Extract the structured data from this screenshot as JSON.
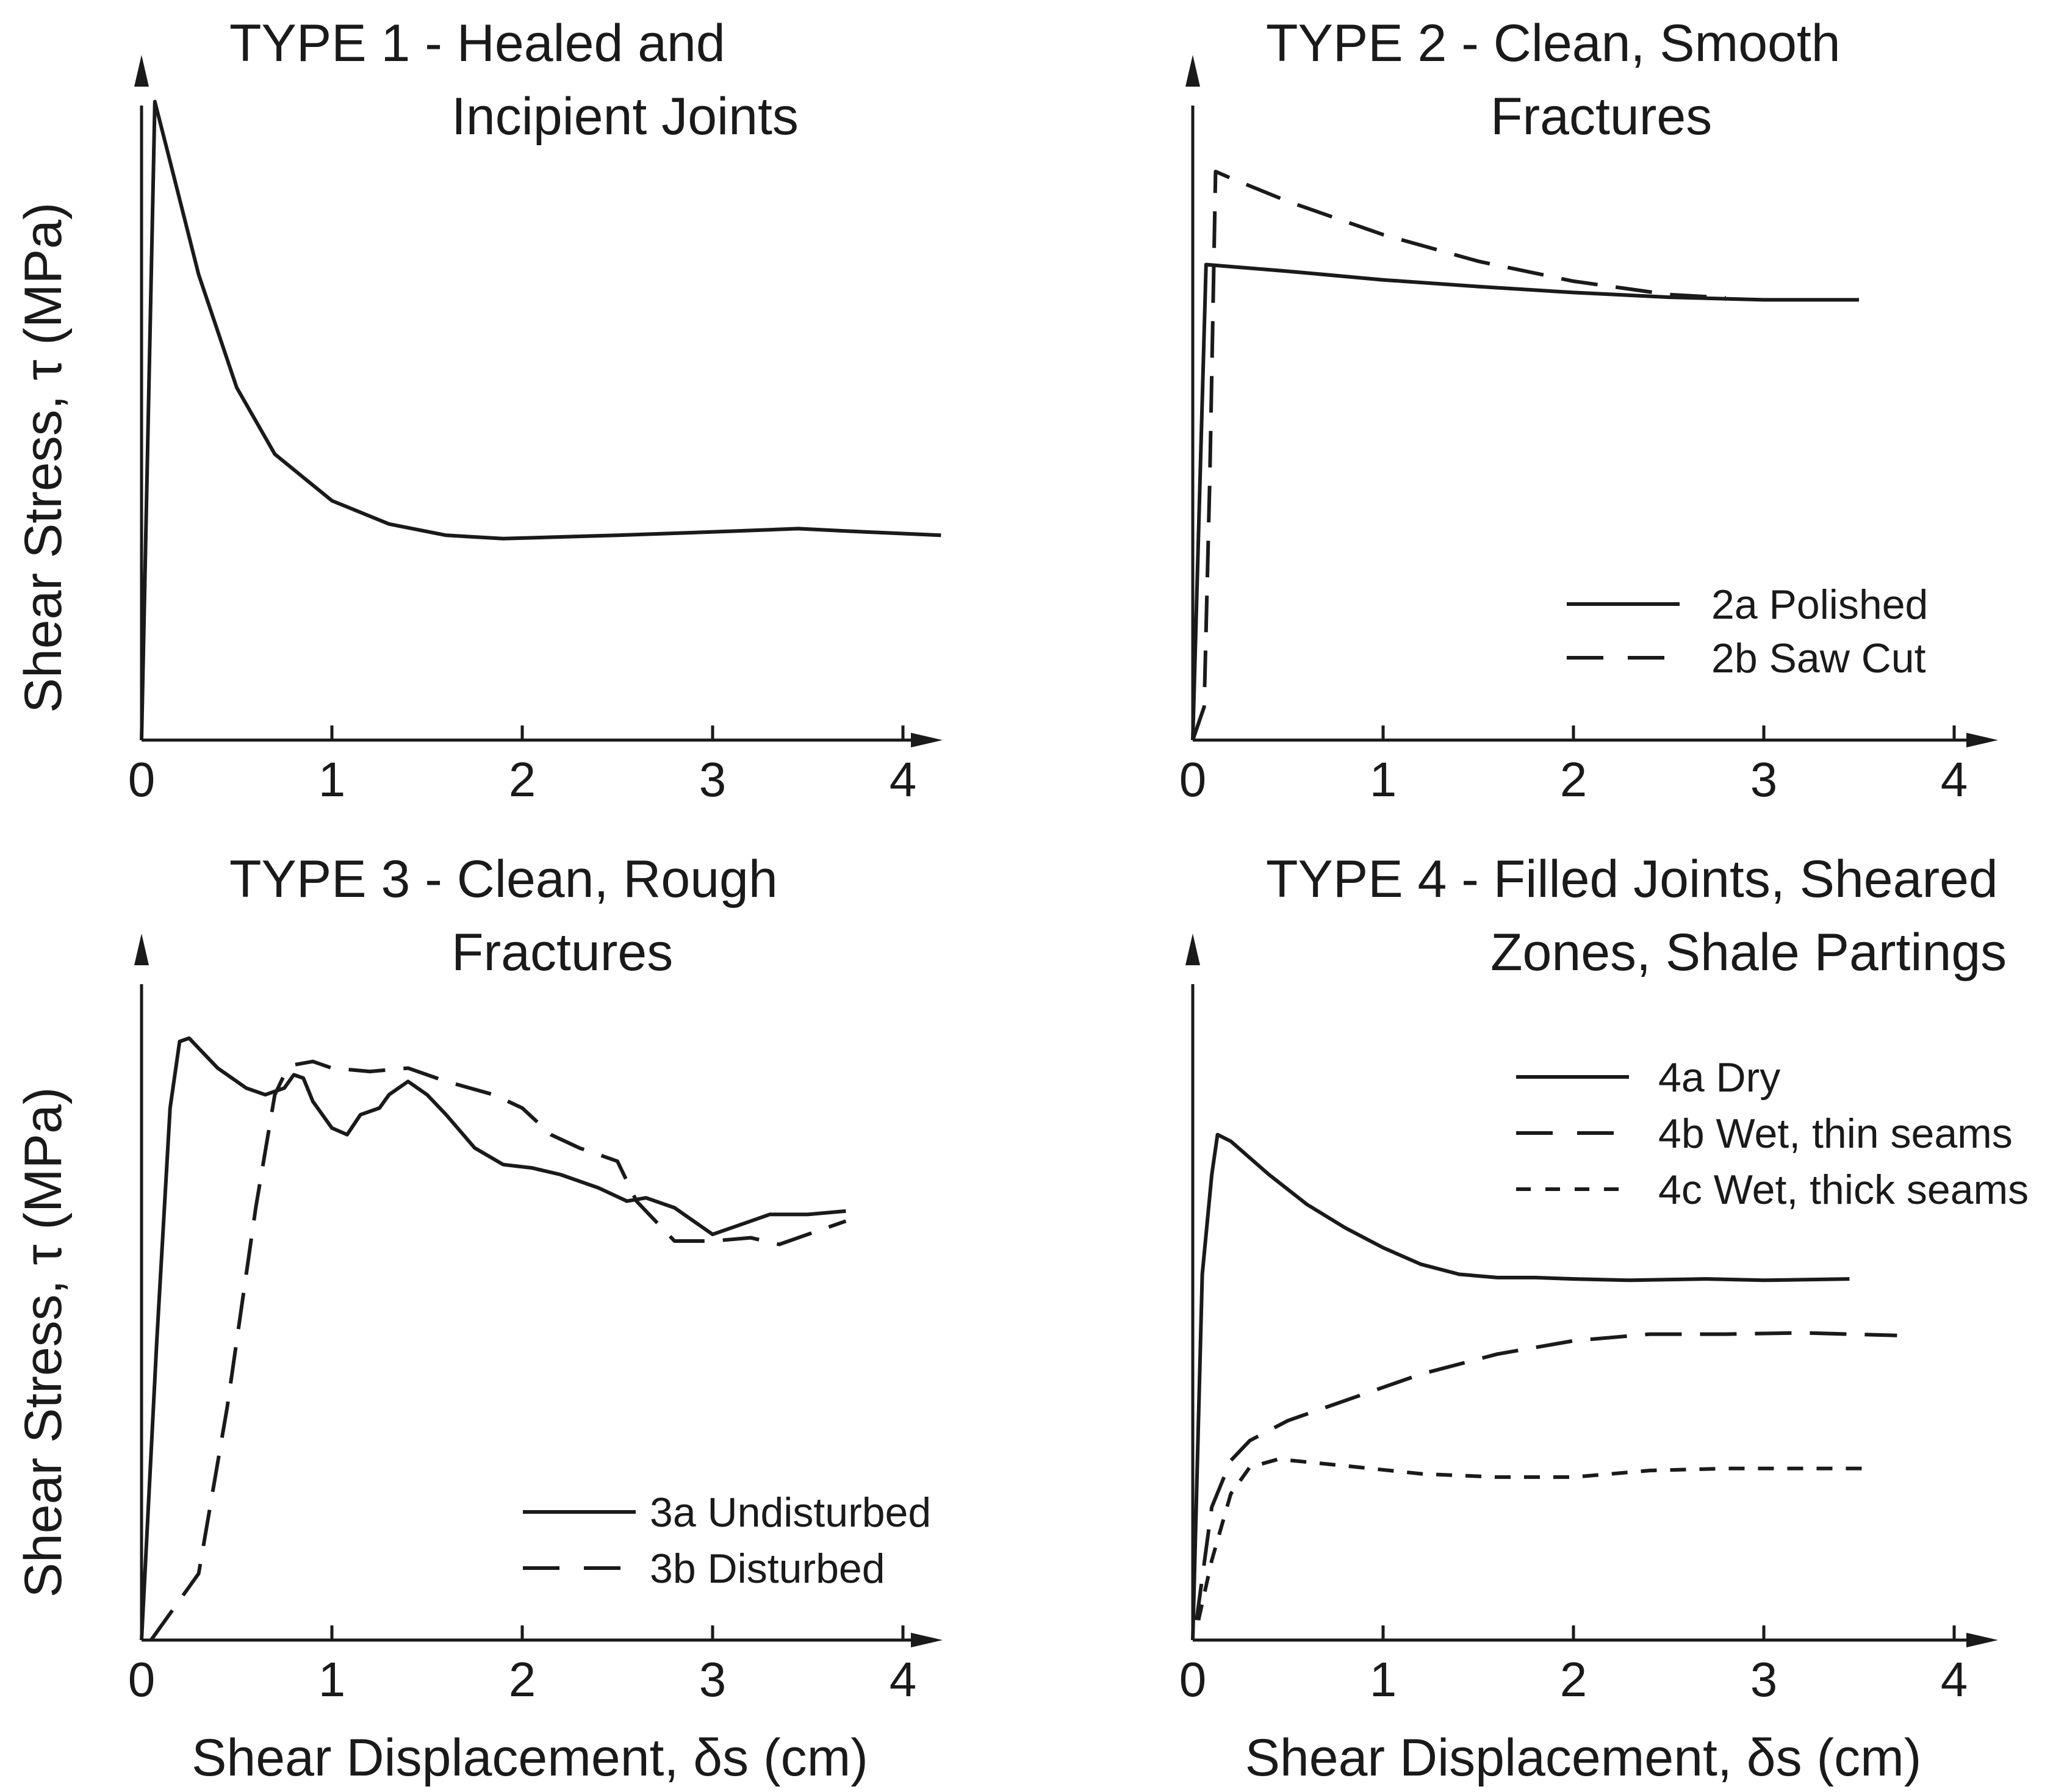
{
  "chart_data": [
    {
      "type": "line",
      "title_line1": "TYPE 1 -  Healed and",
      "title_line2": "Incipient Joints",
      "xlabel": "",
      "ylabel": "Shear Stress, τ (MPa)",
      "xticks": [
        "0",
        "1",
        "2",
        "3",
        "4"
      ],
      "xlim": [
        0,
        4.4
      ],
      "ylim": [
        0,
        1.0
      ],
      "series": [
        {
          "name": "Type 1",
          "style": "solid",
          "x": [
            0,
            0.07,
            0.15,
            0.3,
            0.5,
            0.7,
            1.0,
            1.3,
            1.6,
            1.9,
            2.5,
            3.0,
            3.45,
            3.8,
            4.2
          ],
          "y": [
            0,
            0.96,
            0.87,
            0.7,
            0.53,
            0.43,
            0.36,
            0.325,
            0.308,
            0.303,
            0.308,
            0.313,
            0.318,
            0.313,
            0.308
          ]
        }
      ]
    },
    {
      "type": "line",
      "title_line1": "TYPE 2 -  Clean, Smooth",
      "title_line2": "Fractures",
      "xlabel": "",
      "ylabel": "",
      "xticks": [
        "0",
        "1",
        "2",
        "3",
        "4"
      ],
      "xlim": [
        0,
        4.4
      ],
      "ylim": [
        0,
        1.0
      ],
      "legend": [
        {
          "label": "2a Polished",
          "style": "solid"
        },
        {
          "label": "2b Saw Cut",
          "style": "dashed"
        }
      ],
      "series": [
        {
          "name": "2a Polished",
          "style": "solid",
          "x": [
            0,
            0.07,
            0.5,
            1.0,
            1.5,
            2.0,
            2.5,
            3.0,
            3.5
          ],
          "y": [
            0,
            0.715,
            0.705,
            0.692,
            0.682,
            0.673,
            0.666,
            0.662,
            0.662
          ]
        },
        {
          "name": "2b Saw Cut",
          "style": "dashed",
          "x": [
            0,
            0.06,
            0.09,
            0.12,
            0.2,
            0.5,
            1.0,
            1.5,
            2.0,
            2.5,
            2.8
          ],
          "y": [
            0,
            0.05,
            0.4,
            0.855,
            0.845,
            0.81,
            0.76,
            0.72,
            0.69,
            0.67,
            0.665
          ]
        }
      ]
    },
    {
      "type": "line",
      "title_line1": "TYPE 3 -  Clean, Rough",
      "title_line2": "Fractures",
      "xlabel": "Shear Displacement, δs (cm)",
      "ylabel": "Shear Stress, τ (MPa)",
      "xticks": [
        "0",
        "1",
        "2",
        "3",
        "4"
      ],
      "xlim": [
        0,
        4.4
      ],
      "ylim": [
        0,
        1.0
      ],
      "legend": [
        {
          "label": "3a Undisturbed",
          "style": "solid"
        },
        {
          "label": "3b Disturbed",
          "style": "dashed"
        }
      ],
      "series": [
        {
          "name": "3a Undisturbed",
          "style": "solid",
          "x": [
            0,
            0.08,
            0.15,
            0.2,
            0.25,
            0.3,
            0.4,
            0.55,
            0.65,
            0.75,
            0.8,
            0.85,
            0.9,
            1.0,
            1.08,
            1.15,
            1.25,
            1.3,
            1.4,
            1.5,
            1.6,
            1.75,
            1.9,
            2.05,
            2.2,
            2.4,
            2.55,
            2.65,
            2.8,
            3.0,
            3.15,
            3.3,
            3.5,
            3.7
          ],
          "y": [
            0,
            0.45,
            0.8,
            0.9,
            0.905,
            0.89,
            0.86,
            0.83,
            0.82,
            0.83,
            0.85,
            0.845,
            0.81,
            0.77,
            0.76,
            0.79,
            0.8,
            0.82,
            0.84,
            0.82,
            0.79,
            0.74,
            0.715,
            0.71,
            0.7,
            0.68,
            0.66,
            0.665,
            0.65,
            0.61,
            0.625,
            0.64,
            0.64,
            0.645
          ]
        },
        {
          "name": "3b Disturbed",
          "style": "dashed",
          "x": [
            0.05,
            0.3,
            0.45,
            0.6,
            0.7,
            0.75,
            0.8,
            0.9,
            1.0,
            1.2,
            1.4,
            1.6,
            1.85,
            2.0,
            2.15,
            2.3,
            2.5,
            2.6,
            2.8,
            3.0,
            3.2,
            3.35,
            3.5,
            3.7
          ],
          "y": [
            0,
            0.1,
            0.35,
            0.65,
            0.82,
            0.85,
            0.865,
            0.87,
            0.86,
            0.855,
            0.86,
            0.84,
            0.82,
            0.8,
            0.76,
            0.74,
            0.72,
            0.66,
            0.6,
            0.6,
            0.605,
            0.595,
            0.61,
            0.63
          ]
        }
      ]
    },
    {
      "type": "line",
      "title_line1": "TYPE 4 -  Filled Joints, Sheared",
      "title_line2": "Zones, Shale Partings",
      "xlabel": "Shear Displacement, δs (cm)",
      "ylabel": "",
      "xticks": [
        "0",
        "1",
        "2",
        "3",
        "4"
      ],
      "xlim": [
        0,
        4.4
      ],
      "ylim": [
        0,
        1.0
      ],
      "legend": [
        {
          "label": "4a Dry",
          "style": "solid"
        },
        {
          "label": "4b Wet, thin seams",
          "style": "dashed"
        },
        {
          "label": "4c Wet, thick seams",
          "style": "dotted"
        }
      ],
      "series": [
        {
          "name": "4a Dry",
          "style": "solid",
          "x": [
            0,
            0.05,
            0.1,
            0.13,
            0.2,
            0.4,
            0.6,
            0.8,
            1.0,
            1.2,
            1.4,
            1.6,
            1.8,
            2.0,
            2.3,
            2.7,
            3.0,
            3.45
          ],
          "y": [
            0,
            0.55,
            0.7,
            0.76,
            0.75,
            0.7,
            0.655,
            0.62,
            0.59,
            0.565,
            0.55,
            0.545,
            0.545,
            0.543,
            0.541,
            0.543,
            0.541,
            0.543
          ]
        },
        {
          "name": "4b Wet, thin seams",
          "style": "dashed",
          "x": [
            0.02,
            0.1,
            0.2,
            0.3,
            0.5,
            0.8,
            1.2,
            1.6,
            2.0,
            2.4,
            2.8,
            3.2,
            3.7
          ],
          "y": [
            0.03,
            0.2,
            0.27,
            0.3,
            0.33,
            0.36,
            0.4,
            0.43,
            0.45,
            0.46,
            0.46,
            0.462,
            0.458
          ]
        },
        {
          "name": "4c Wet, thick seams",
          "style": "dotted",
          "x": [
            0.03,
            0.1,
            0.2,
            0.3,
            0.45,
            0.8,
            1.2,
            1.6,
            2.0,
            2.4,
            2.8,
            3.2,
            3.55
          ],
          "y": [
            0.03,
            0.12,
            0.22,
            0.26,
            0.272,
            0.262,
            0.25,
            0.245,
            0.245,
            0.255,
            0.258,
            0.258,
            0.258
          ]
        }
      ]
    }
  ]
}
